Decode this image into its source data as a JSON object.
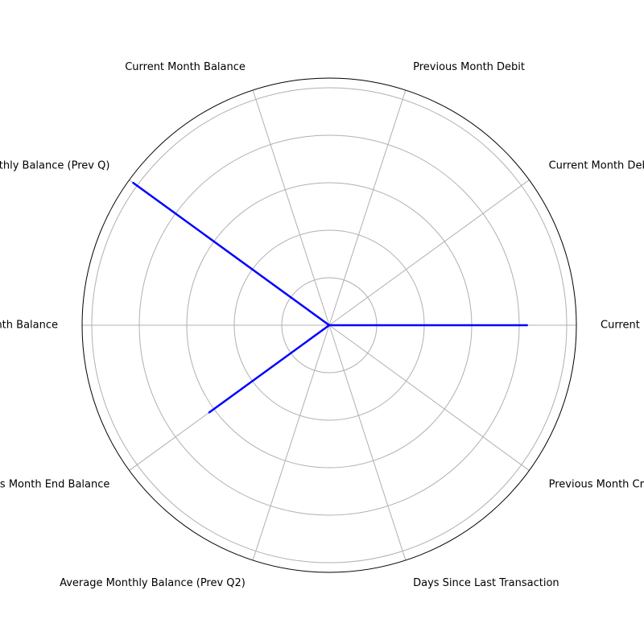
{
  "chart_data": {
    "type": "radar",
    "categories": [
      "Current Balance",
      "Current Month Debit",
      "Previous Month Debit",
      "Current Month Balance",
      "Average Monthly Balance (Prev Q)",
      "Previous Month Balance",
      "Previous Month End Balance",
      "Average Monthly Balance (Prev Q2)",
      "Days Since Last Transaction",
      "Previous Month Credit"
    ],
    "series": [
      {
        "values": [
          0.8,
          0.0,
          0.0,
          0.0,
          0.98,
          0.0,
          0.6,
          0.0,
          0.0,
          0.0
        ],
        "color": "#0000ff"
      }
    ],
    "rlim": [
      0,
      1.0
    ],
    "rticks": [
      0.2,
      0.4,
      0.6,
      0.8,
      1.0
    ],
    "tick_labels_shown": false,
    "grid": true,
    "colors": {
      "grid": "#b0b0b0",
      "spine": "#000000",
      "line": "#0000ff"
    }
  }
}
